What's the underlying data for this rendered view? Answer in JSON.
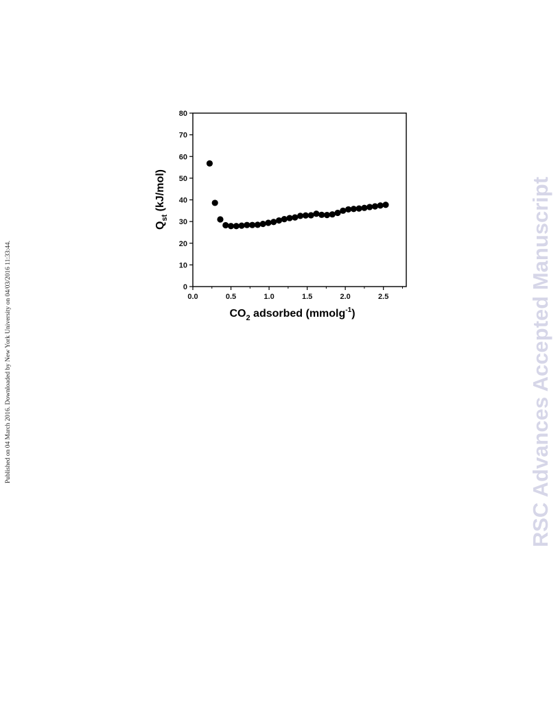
{
  "side_note": "Published on 04 March 2016. Downloaded by New York University on 04/03/2016 11:33:44.",
  "watermark": "RSC Advances Accepted Manuscript",
  "chart_data": {
    "type": "scatter",
    "xlabel": {
      "main": "CO",
      "sub": "2",
      "rest": " adsorbed (mmolg",
      "sup": "-1",
      "end": ")"
    },
    "ylabel": {
      "main": "Q",
      "sub": "st",
      "rest": " (kJ/mol)"
    },
    "xlim": [
      0.0,
      2.8
    ],
    "ylim": [
      0,
      80
    ],
    "xticks": [
      0.0,
      0.5,
      1.0,
      1.5,
      2.0,
      2.5
    ],
    "xtick_labels": [
      "0.0",
      "0.5",
      "1.0",
      "1.5",
      "2.0",
      "2.5"
    ],
    "yticks": [
      0,
      10,
      20,
      30,
      40,
      50,
      60,
      70,
      80
    ],
    "ytick_labels": [
      "0",
      "10",
      "20",
      "30",
      "40",
      "50",
      "60",
      "70",
      "80"
    ],
    "grid": false,
    "marker_color": "#000000",
    "points": [
      {
        "x": 0.22,
        "y": 56.8
      },
      {
        "x": 0.29,
        "y": 38.6
      },
      {
        "x": 0.36,
        "y": 31.0
      },
      {
        "x": 0.43,
        "y": 28.3
      },
      {
        "x": 0.5,
        "y": 27.9
      },
      {
        "x": 0.57,
        "y": 27.9
      },
      {
        "x": 0.64,
        "y": 28.1
      },
      {
        "x": 0.71,
        "y": 28.4
      },
      {
        "x": 0.78,
        "y": 28.4
      },
      {
        "x": 0.85,
        "y": 28.5
      },
      {
        "x": 0.92,
        "y": 28.9
      },
      {
        "x": 0.99,
        "y": 29.4
      },
      {
        "x": 1.06,
        "y": 29.8
      },
      {
        "x": 1.13,
        "y": 30.5
      },
      {
        "x": 1.2,
        "y": 31.1
      },
      {
        "x": 1.27,
        "y": 31.6
      },
      {
        "x": 1.34,
        "y": 31.9
      },
      {
        "x": 1.41,
        "y": 32.6
      },
      {
        "x": 1.48,
        "y": 32.8
      },
      {
        "x": 1.55,
        "y": 32.9
      },
      {
        "x": 1.62,
        "y": 33.6
      },
      {
        "x": 1.69,
        "y": 33.1
      },
      {
        "x": 1.76,
        "y": 33.0
      },
      {
        "x": 1.83,
        "y": 33.3
      },
      {
        "x": 1.9,
        "y": 34.0
      },
      {
        "x": 1.97,
        "y": 35.0
      },
      {
        "x": 2.04,
        "y": 35.6
      },
      {
        "x": 2.11,
        "y": 35.8
      },
      {
        "x": 2.18,
        "y": 36.0
      },
      {
        "x": 2.25,
        "y": 36.3
      },
      {
        "x": 2.32,
        "y": 36.7
      },
      {
        "x": 2.39,
        "y": 37.0
      },
      {
        "x": 2.46,
        "y": 37.4
      },
      {
        "x": 2.53,
        "y": 37.7
      }
    ]
  }
}
